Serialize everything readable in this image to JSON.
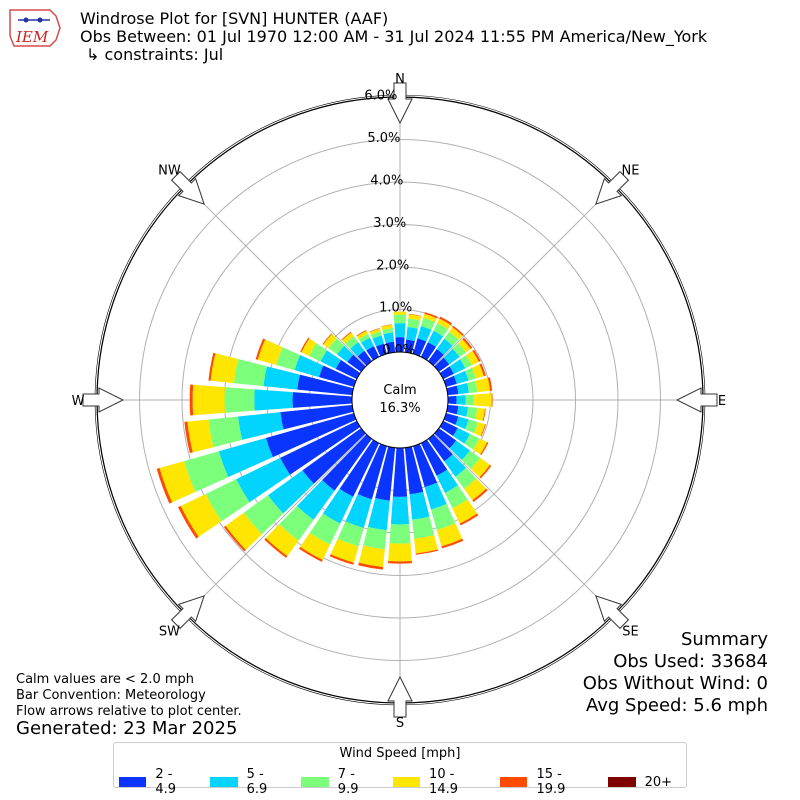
{
  "logo_text": "IEM",
  "title": {
    "line1": "Windrose Plot for [SVN] HUNTER (AAF)",
    "line2": "Obs Between: 01 Jul 1970 12:00 AM - 31 Jul 2024 11:55 PM America/New_York",
    "line3": "↳ constraints: Jul"
  },
  "notes": {
    "calm": "Calm values are < 2.0 mph",
    "bar": "Bar Convention: Meteorology",
    "flow": "Flow arrows relative to plot center.",
    "generated": "Generated: 23 Mar 2025"
  },
  "summary": {
    "heading": "Summary",
    "obs_used": "Obs Used: 33684",
    "obs_without_wind": "Obs Without Wind: 0",
    "avg_speed": "Avg Speed: 5.6 mph"
  },
  "calm": {
    "label": "Calm",
    "value": "16.3%"
  },
  "legend": {
    "title": "Wind Speed [mph]",
    "items": [
      {
        "label": "2 - 4.9",
        "color": "#0a34ff"
      },
      {
        "label": "5 - 6.9",
        "color": "#00d4ff"
      },
      {
        "label": "7 - 9.9",
        "color": "#7cff7a"
      },
      {
        "label": "10 - 14.9",
        "color": "#ffe600"
      },
      {
        "label": "15 - 19.9",
        "color": "#ff4a00"
      },
      {
        "label": "20+",
        "color": "#800000"
      }
    ]
  },
  "chart_data": {
    "type": "windrose",
    "title": "Windrose Plot for [SVN] HUNTER (AAF)",
    "radial_unit": "%",
    "rlim": [
      0,
      6.0
    ],
    "radial_ticks": [
      "0.0%",
      "1.0%",
      "2.0%",
      "3.0%",
      "4.0%",
      "5.0%",
      "6.0%"
    ],
    "directions": [
      "N",
      "NE",
      "E",
      "SE",
      "S",
      "SW",
      "W",
      "NW"
    ],
    "calm_percent": 16.3,
    "bins": [
      "2 - 4.9",
      "5 - 6.9",
      "7 - 9.9",
      "10 - 14.9",
      "15 - 19.9",
      "20+"
    ],
    "sectors_deg": [
      0,
      10,
      20,
      30,
      40,
      50,
      60,
      70,
      80,
      90,
      100,
      110,
      120,
      130,
      140,
      150,
      160,
      170,
      180,
      190,
      200,
      210,
      220,
      230,
      240,
      250,
      260,
      270,
      280,
      290,
      300,
      310,
      320,
      330,
      340,
      350
    ],
    "cumulative_percent": [
      [
        0.35,
        0.68,
        0.88,
        0.95,
        0.95,
        0.95
      ],
      [
        0.3,
        0.6,
        0.8,
        0.9,
        0.91,
        0.91
      ],
      [
        0.38,
        0.68,
        0.88,
        0.98,
        1.02,
        1.02
      ],
      [
        0.38,
        0.68,
        0.88,
        1.0,
        1.05,
        1.05
      ],
      [
        0.35,
        0.65,
        0.85,
        0.98,
        1.02,
        1.02
      ],
      [
        0.3,
        0.6,
        0.78,
        0.92,
        0.97,
        0.97
      ],
      [
        0.28,
        0.58,
        0.75,
        0.93,
        0.98,
        0.98
      ],
      [
        0.26,
        0.55,
        0.73,
        0.92,
        0.97,
        0.97
      ],
      [
        0.25,
        0.5,
        0.7,
        1.0,
        1.05,
        1.05
      ],
      [
        0.2,
        0.42,
        0.62,
        1.03,
        1.05,
        1.05
      ],
      [
        0.25,
        0.48,
        0.7,
        0.88,
        0.9,
        0.9
      ],
      [
        0.3,
        0.55,
        0.78,
        0.95,
        0.97,
        0.97
      ],
      [
        0.38,
        0.7,
        0.95,
        1.15,
        1.18,
        1.18
      ],
      [
        0.5,
        0.9,
        1.2,
        1.48,
        1.52,
        1.52
      ],
      [
        0.65,
        1.1,
        1.45,
        1.78,
        1.83,
        1.83
      ],
      [
        0.85,
        1.3,
        1.7,
        2.1,
        2.15,
        2.15
      ],
      [
        1.0,
        1.55,
        2.05,
        2.45,
        2.5,
        2.5
      ],
      [
        1.1,
        1.7,
        2.15,
        2.5,
        2.53,
        2.53
      ],
      [
        1.15,
        1.8,
        2.25,
        2.67,
        2.72,
        2.72
      ],
      [
        1.25,
        1.95,
        2.4,
        2.82,
        2.88,
        2.88
      ],
      [
        1.3,
        2.0,
        2.45,
        2.85,
        2.9,
        2.9
      ],
      [
        1.4,
        2.1,
        2.65,
        3.05,
        3.1,
        3.1
      ],
      [
        1.5,
        2.35,
        2.95,
        3.4,
        3.45,
        3.45
      ],
      [
        1.7,
        2.7,
        3.4,
        3.93,
        3.98,
        3.98
      ],
      [
        2.0,
        3.15,
        3.95,
        4.6,
        4.67,
        4.67
      ],
      [
        2.15,
        3.3,
        4.15,
        4.75,
        4.82,
        4.82
      ],
      [
        1.7,
        2.7,
        3.4,
        3.9,
        3.97,
        3.97
      ],
      [
        1.4,
        2.3,
        3.0,
        3.75,
        3.82,
        3.82
      ],
      [
        1.3,
        2.1,
        2.8,
        3.35,
        3.4,
        3.4
      ],
      [
        0.85,
        1.45,
        1.9,
        2.35,
        2.4,
        2.4
      ],
      [
        0.55,
        0.95,
        1.25,
        1.45,
        1.48,
        1.48
      ],
      [
        0.4,
        0.7,
        0.95,
        1.1,
        1.12,
        1.12
      ],
      [
        0.3,
        0.55,
        0.72,
        0.83,
        0.85,
        0.85
      ],
      [
        0.28,
        0.5,
        0.6,
        0.68,
        0.7,
        0.7
      ],
      [
        0.25,
        0.45,
        0.55,
        0.62,
        0.63,
        0.63
      ],
      [
        0.25,
        0.47,
        0.57,
        0.65,
        0.66,
        0.66
      ]
    ]
  }
}
